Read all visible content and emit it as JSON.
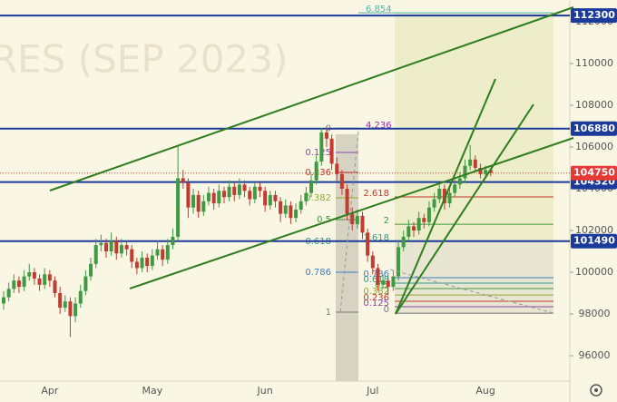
{
  "chart_data": {
    "type": "candlestick",
    "watermark": "RES (SEP 2023)",
    "ylim": [
      94783,
      113043
    ],
    "yticks": [
      96000,
      98000,
      100000,
      102000,
      104000,
      106000,
      108000,
      110000,
      112000
    ],
    "up_color": "#3f9a43",
    "down_color": "#c23b2e",
    "categories": [
      null,
      null,
      null,
      null,
      null,
      null,
      null,
      null,
      null,
      "Apr",
      null,
      null,
      null,
      null,
      null,
      null,
      null,
      null,
      null,
      null,
      null,
      null,
      null,
      null,
      null,
      null,
      null,
      null,
      null,
      "May",
      null,
      null,
      null,
      null,
      null,
      null,
      null,
      null,
      null,
      null,
      null,
      null,
      null,
      null,
      null,
      null,
      null,
      null,
      null,
      null,
      null,
      "Jun",
      null,
      null,
      null,
      null,
      null,
      null,
      null,
      null,
      null,
      null,
      null,
      null,
      null,
      null,
      null,
      null,
      null,
      null,
      null,
      null,
      "Jul",
      null,
      null,
      null,
      null,
      null,
      null,
      null,
      null,
      null,
      null,
      null,
      null,
      null,
      null,
      null,
      null,
      null,
      null,
      null,
      null,
      null,
      "Aug",
      null
    ],
    "candles": [
      [
        98500,
        99100,
        98200,
        98800
      ],
      [
        98800,
        99500,
        98600,
        99200
      ],
      [
        99200,
        99900,
        99000,
        99600
      ],
      [
        99600,
        99800,
        99000,
        99300
      ],
      [
        99300,
        100100,
        99100,
        99800
      ],
      [
        99800,
        100400,
        99600,
        100000
      ],
      [
        100000,
        100200,
        99400,
        99700
      ],
      [
        99700,
        99900,
        99100,
        99400
      ],
      [
        99400,
        100200,
        99200,
        99900
      ],
      [
        99900,
        100100,
        99300,
        99600
      ],
      [
        99600,
        99800,
        98800,
        99000
      ],
      [
        99000,
        99300,
        98000,
        98300
      ],
      [
        98300,
        98900,
        98100,
        98600
      ],
      [
        98600,
        98800,
        96900,
        97900
      ],
      [
        97900,
        98800,
        97600,
        98500
      ],
      [
        98500,
        99400,
        98300,
        99100
      ],
      [
        99100,
        100100,
        98900,
        99800
      ],
      [
        99800,
        100700,
        99600,
        100400
      ],
      [
        100400,
        101600,
        100200,
        101300
      ],
      [
        101300,
        101800,
        101000,
        101400
      ],
      [
        101400,
        101600,
        100700,
        101000
      ],
      [
        101000,
        101900,
        100800,
        101500
      ],
      [
        101500,
        101700,
        100600,
        100900
      ],
      [
        100900,
        101600,
        100700,
        101300
      ],
      [
        101300,
        101500,
        100800,
        101100
      ],
      [
        101100,
        101300,
        100200,
        100500
      ],
      [
        100500,
        100700,
        99900,
        100200
      ],
      [
        100200,
        101000,
        100000,
        100700
      ],
      [
        100700,
        100900,
        100000,
        100300
      ],
      [
        100300,
        101100,
        100100,
        100800
      ],
      [
        100800,
        101500,
        100600,
        101100
      ],
      [
        101100,
        101300,
        100300,
        100600
      ],
      [
        100600,
        101600,
        100400,
        101300
      ],
      [
        101300,
        102100,
        101100,
        101700
      ],
      [
        101700,
        106100,
        101500,
        104500
      ],
      [
        104500,
        104900,
        104000,
        104300
      ],
      [
        104300,
        104500,
        102600,
        103100
      ],
      [
        103100,
        104000,
        102800,
        103700
      ],
      [
        103700,
        103900,
        102600,
        102900
      ],
      [
        102900,
        103700,
        102700,
        103400
      ],
      [
        103400,
        104100,
        103200,
        103800
      ],
      [
        103800,
        104000,
        103000,
        103300
      ],
      [
        103300,
        104200,
        103100,
        103900
      ],
      [
        103900,
        104100,
        103300,
        103600
      ],
      [
        103600,
        104400,
        103400,
        104100
      ],
      [
        104100,
        104300,
        103400,
        103700
      ],
      [
        103700,
        104500,
        103500,
        104200
      ],
      [
        104200,
        104400,
        103600,
        103900
      ],
      [
        103900,
        104100,
        103200,
        103500
      ],
      [
        103500,
        104300,
        103300,
        104100
      ],
      [
        104100,
        104300,
        103600,
        103900
      ],
      [
        103900,
        104100,
        102900,
        103200
      ],
      [
        103200,
        103900,
        103000,
        103700
      ],
      [
        103700,
        103900,
        103100,
        103400
      ],
      [
        103400,
        103600,
        102400,
        102800
      ],
      [
        102800,
        103500,
        102600,
        103200
      ],
      [
        103200,
        103400,
        102300,
        102600
      ],
      [
        102600,
        103300,
        102400,
        103000
      ],
      [
        103000,
        103700,
        102800,
        103400
      ],
      [
        103400,
        104100,
        103200,
        103800
      ],
      [
        103800,
        104700,
        103600,
        104400
      ],
      [
        104400,
        105600,
        104200,
        105300
      ],
      [
        105300,
        106900,
        105100,
        106700
      ],
      [
        106700,
        106900,
        106000,
        106400
      ],
      [
        106400,
        106600,
        104900,
        105200
      ],
      [
        105200,
        105500,
        104400,
        104700
      ],
      [
        104700,
        104900,
        103700,
        104000
      ],
      [
        104000,
        104200,
        102500,
        102800
      ],
      [
        102800,
        103100,
        102000,
        102300
      ],
      [
        102300,
        103000,
        102100,
        102700
      ],
      [
        102700,
        102900,
        101600,
        101900
      ],
      [
        101900,
        102100,
        100500,
        100800
      ],
      [
        100800,
        101000,
        99900,
        100200
      ],
      [
        100200,
        100400,
        99100,
        99400
      ],
      [
        99400,
        99900,
        99200,
        99600
      ],
      [
        99600,
        99800,
        98900,
        99300
      ],
      [
        99300,
        100100,
        99100,
        99800
      ],
      [
        99800,
        101500,
        99600,
        101200
      ],
      [
        101200,
        102000,
        101000,
        101700
      ],
      [
        101700,
        102500,
        101500,
        102200
      ],
      [
        102200,
        102400,
        101700,
        102000
      ],
      [
        102000,
        102900,
        101800,
        102600
      ],
      [
        102600,
        102800,
        102100,
        102400
      ],
      [
        102400,
        103400,
        102200,
        103100
      ],
      [
        103100,
        103800,
        102900,
        103500
      ],
      [
        103500,
        104300,
        103300,
        104000
      ],
      [
        104000,
        104200,
        103000,
        103300
      ],
      [
        103300,
        104100,
        103100,
        103800
      ],
      [
        103800,
        104500,
        103600,
        104200
      ],
      [
        104200,
        104800,
        104000,
        104500
      ],
      [
        104500,
        105400,
        104300,
        105100
      ],
      [
        105100,
        106100,
        104900,
        105400
      ],
      [
        105400,
        105600,
        104800,
        105000
      ],
      [
        105000,
        105200,
        104500,
        104700
      ],
      [
        104700,
        105100,
        104500,
        104900
      ],
      [
        104900,
        105000,
        104600,
        104750
      ]
    ],
    "levels": [
      {
        "price": 112300,
        "color": "#1a3a9c"
      },
      {
        "price": 106880,
        "color": "#1a3a9c"
      },
      {
        "price": 104320,
        "color": "#1a3a9c"
      },
      {
        "price": 101490,
        "color": "#1a3a9c"
      }
    ],
    "last_price": {
      "price": 104750,
      "color": "#e53935"
    },
    "fib_left": [
      {
        "label": "0",
        "price": 106900,
        "color": "#777777"
      },
      {
        "label": "0.125",
        "price": 105740,
        "color": "#8e44ad"
      },
      {
        "label": "0.236",
        "price": 104780,
        "color": "#c0392b"
      },
      {
        "label": "0.382",
        "price": 103565,
        "color": "#8bab2e"
      },
      {
        "label": "0.5",
        "price": 102520,
        "color": "#3c9a3c"
      },
      {
        "label": "0.618",
        "price": 101480,
        "color": "#2e9a8a"
      },
      {
        "label": "0.786",
        "price": 100000,
        "color": "#3d7dc2"
      },
      {
        "label": "1",
        "price": 98087,
        "color": "#777777"
      }
    ],
    "fib_right": [
      {
        "label": "6.854",
        "price": 112430,
        "color": "#4db6ac"
      },
      {
        "label": "4.236",
        "price": 106880,
        "color": "#9c27b0"
      },
      {
        "label": "2.618",
        "price": 103610,
        "color": "#c0392b"
      },
      {
        "label": "2",
        "price": 102300,
        "color": "#3c9a3c"
      },
      {
        "label": "1.618",
        "price": 101480,
        "color": "#2e9a8a"
      },
      {
        "label": "0.786",
        "price": 99740,
        "color": "#3d7dc2"
      },
      {
        "label": "0.618",
        "price": 99480,
        "color": "#2e9a8a"
      },
      {
        "label": "0.5",
        "price": 99220,
        "color": "#3c9a3c"
      },
      {
        "label": "0.382",
        "price": 98910,
        "color": "#8bab2e"
      },
      {
        "label": "0.236",
        "price": 98610,
        "color": "#c0392b"
      },
      {
        "label": "0.125",
        "price": 98350,
        "color": "#8e44ad"
      },
      {
        "label": "0",
        "price": 98040,
        "color": "#777777"
      }
    ]
  }
}
